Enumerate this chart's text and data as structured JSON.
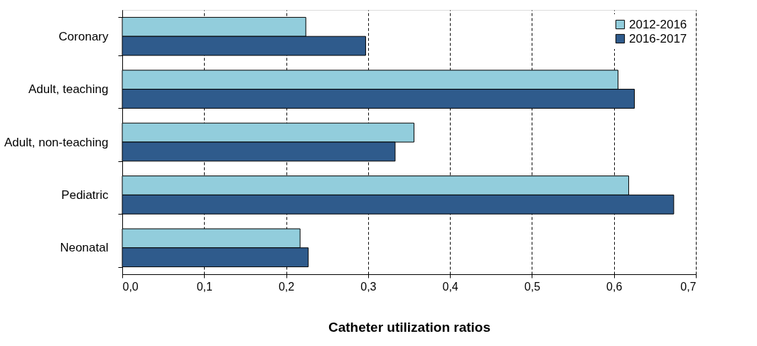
{
  "chart_data": {
    "type": "bar",
    "orientation": "horizontal",
    "xlabel": "Catheter utilization ratios",
    "categories": [
      "Coronary",
      "Adult, teaching",
      "Adult, non-teaching",
      "Pediatric",
      "Neonatal"
    ],
    "series": [
      {
        "name": "2012-2016",
        "color": "#92cddc",
        "values": [
          0.224,
          0.605,
          0.356,
          0.618,
          0.217
        ]
      },
      {
        "name": "2016-2017",
        "color": "#2f5b8c",
        "values": [
          0.297,
          0.625,
          0.333,
          0.673,
          0.227
        ]
      }
    ],
    "xlim": [
      0,
      0.7
    ],
    "xticks": [
      {
        "value": 0,
        "label": "0,0"
      },
      {
        "value": 0.1,
        "label": "0,1"
      },
      {
        "value": 0.2,
        "label": "0,2"
      },
      {
        "value": 0.3,
        "label": "0,3"
      },
      {
        "value": 0.4,
        "label": "0,4"
      },
      {
        "value": 0.5,
        "label": "0,5"
      },
      {
        "value": 0.6,
        "label": "0,6"
      },
      {
        "value": 0.7,
        "label": "0,7"
      }
    ],
    "grid": "x",
    "legend": "top right"
  }
}
